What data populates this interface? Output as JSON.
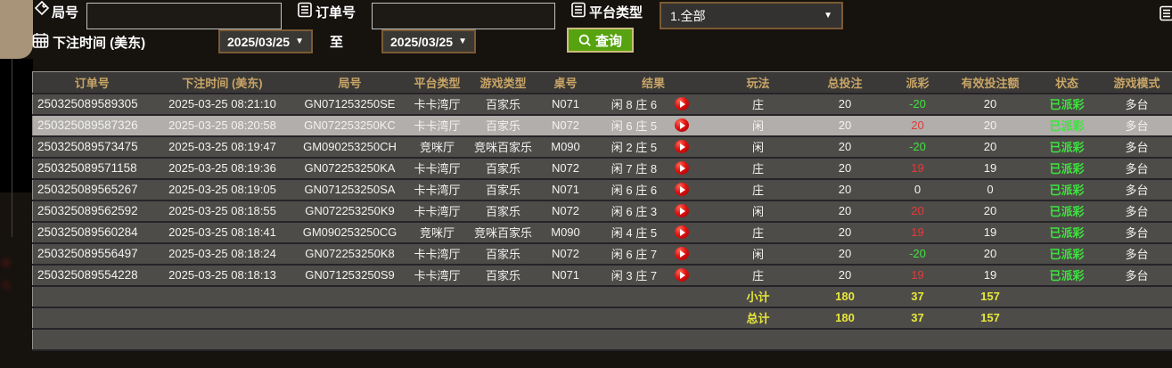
{
  "form": {
    "game_no": {
      "label": "局号",
      "value": ""
    },
    "order_no": {
      "label": "订单号",
      "value": ""
    },
    "platform_type": {
      "label": "平台类型",
      "selected": "1.全部",
      "arrow": "▼"
    },
    "bet_time": {
      "label": "下注时间 (美东)",
      "from": "2025/03/25",
      "to_separator": "至",
      "to": "2025/03/25",
      "arrow": "▼"
    },
    "query_button": "查询"
  },
  "table": {
    "headers": [
      "订单号",
      "下注时间 (美东)",
      "局号",
      "平台类型",
      "游戏类型",
      "桌号",
      "结果",
      "玩法",
      "总投注",
      "派彩",
      "有效投注额",
      "状态",
      "游戏模式"
    ],
    "rows": [
      {
        "order_no": "250325089589305",
        "bet_time": "2025-03-25 08:21:10",
        "game_no": "GN071253250SE",
        "platform": "卡卡湾厅",
        "game_type": "百家乐",
        "table_no": "N071",
        "result": "闲 8 庄 6",
        "play": "庄",
        "total_bet": "20",
        "payout": "-20",
        "valid_bet": "20",
        "status": "已派彩",
        "game_mode": "多台",
        "selected": false
      },
      {
        "order_no": "250325089587326",
        "bet_time": "2025-03-25 08:20:58",
        "game_no": "GN072253250KC",
        "platform": "卡卡湾厅",
        "game_type": "百家乐",
        "table_no": "N072",
        "result": "闲 6 庄 5",
        "play": "闲",
        "total_bet": "20",
        "payout": "20",
        "valid_bet": "20",
        "status": "已派彩",
        "game_mode": "多台",
        "selected": true
      },
      {
        "order_no": "250325089573475",
        "bet_time": "2025-03-25 08:19:47",
        "game_no": "GM090253250CH",
        "platform": "竞咪厅",
        "game_type": "竞咪百家乐",
        "table_no": "M090",
        "result": "闲 2 庄 5",
        "play": "闲",
        "total_bet": "20",
        "payout": "-20",
        "valid_bet": "20",
        "status": "已派彩",
        "game_mode": "多台",
        "selected": false
      },
      {
        "order_no": "250325089571158",
        "bet_time": "2025-03-25 08:19:36",
        "game_no": "GN072253250KA",
        "platform": "卡卡湾厅",
        "game_type": "百家乐",
        "table_no": "N072",
        "result": "闲 7 庄 8",
        "play": "庄",
        "total_bet": "20",
        "payout": "19",
        "valid_bet": "19",
        "status": "已派彩",
        "game_mode": "多台",
        "selected": false
      },
      {
        "order_no": "250325089565267",
        "bet_time": "2025-03-25 08:19:05",
        "game_no": "GN071253250SA",
        "platform": "卡卡湾厅",
        "game_type": "百家乐",
        "table_no": "N071",
        "result": "闲 6 庄 6",
        "play": "庄",
        "total_bet": "20",
        "payout": "0",
        "valid_bet": "0",
        "status": "已派彩",
        "game_mode": "多台",
        "selected": false
      },
      {
        "order_no": "250325089562592",
        "bet_time": "2025-03-25 08:18:55",
        "game_no": "GN072253250K9",
        "platform": "卡卡湾厅",
        "game_type": "百家乐",
        "table_no": "N072",
        "result": "闲 6 庄 3",
        "play": "闲",
        "total_bet": "20",
        "payout": "20",
        "valid_bet": "20",
        "status": "已派彩",
        "game_mode": "多台",
        "selected": false
      },
      {
        "order_no": "250325089560284",
        "bet_time": "2025-03-25 08:18:41",
        "game_no": "GM090253250CG",
        "platform": "竞咪厅",
        "game_type": "竞咪百家乐",
        "table_no": "M090",
        "result": "闲 4 庄 5",
        "play": "庄",
        "total_bet": "20",
        "payout": "19",
        "valid_bet": "19",
        "status": "已派彩",
        "game_mode": "多台",
        "selected": false
      },
      {
        "order_no": "250325089556497",
        "bet_time": "2025-03-25 08:18:24",
        "game_no": "GN072253250K8",
        "platform": "卡卡湾厅",
        "game_type": "百家乐",
        "table_no": "N072",
        "result": "闲 6 庄 7",
        "play": "闲",
        "total_bet": "20",
        "payout": "-20",
        "valid_bet": "20",
        "status": "已派彩",
        "game_mode": "多台",
        "selected": false
      },
      {
        "order_no": "250325089554228",
        "bet_time": "2025-03-25 08:18:13",
        "game_no": "GN071253250S9",
        "platform": "卡卡湾厅",
        "game_type": "百家乐",
        "table_no": "N071",
        "result": "闲 3 庄 7",
        "play": "庄",
        "total_bet": "20",
        "payout": "19",
        "valid_bet": "19",
        "status": "已派彩",
        "game_mode": "多台",
        "selected": false
      }
    ],
    "subtotal": {
      "label": "小计",
      "total_bet": "180",
      "payout": "37",
      "valid_bet": "157"
    },
    "grand_total": {
      "label": "总计",
      "total_bet": "180",
      "payout": "37",
      "valid_bet": "157"
    }
  },
  "colors": {
    "header_text": "#c9a567",
    "payout_positive": "#e03c3c",
    "payout_negative": "#3ee33e",
    "status_paid": "#3ee33e",
    "totals_text": "#e6e73a",
    "query_button_bg": "#56a30f",
    "selected_row_bg": "#b1aeab"
  }
}
